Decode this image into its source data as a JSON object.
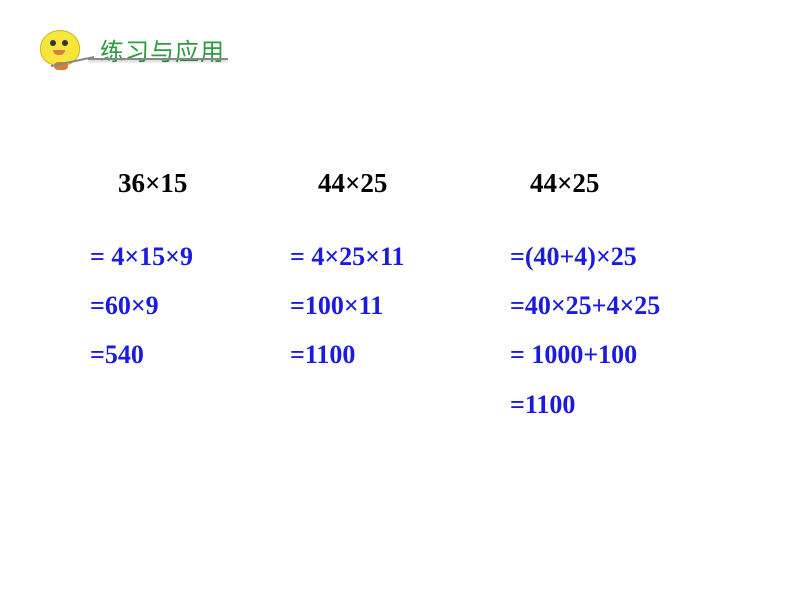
{
  "header": {
    "title": "练习与应用",
    "title_color": "#2d9b3f",
    "title_fontsize": 24
  },
  "problem_color": "#000000",
  "step_color": "#1a1ae0",
  "background_color": "#ffffff",
  "columns": [
    {
      "problem": "36×15",
      "steps": [
        "= 4×15×9",
        "=60×9",
        "=540"
      ]
    },
    {
      "problem": "44×25",
      "steps": [
        "= 4×25×11",
        "=100×11",
        "=1100"
      ]
    },
    {
      "problem": "44×25",
      "steps": [
        "=(40+4)×25",
        "=40×25+4×25",
        "= 1000+100",
        "=1100"
      ]
    }
  ]
}
